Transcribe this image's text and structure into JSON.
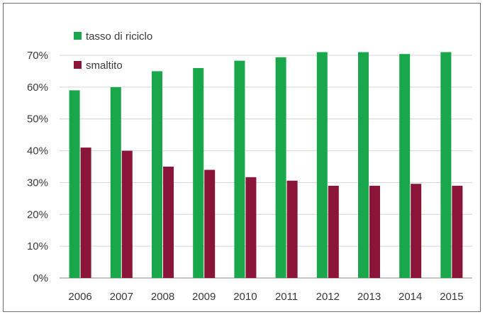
{
  "chart_data": {
    "type": "bar",
    "title": "",
    "xlabel": "",
    "ylabel": "",
    "categories": [
      "2006",
      "2007",
      "2008",
      "2009",
      "2010",
      "2011",
      "2012",
      "2013",
      "2014",
      "2015"
    ],
    "series": [
      {
        "name": "tasso di riciclo",
        "color": "#1aa64a",
        "values": [
          59,
          60,
          65,
          66,
          68.3,
          69.4,
          71,
          71,
          70.4,
          71
        ]
      },
      {
        "name": "smaltito",
        "color": "#8b1538",
        "values": [
          41,
          40,
          35,
          34,
          31.7,
          30.6,
          29,
          29,
          29.6,
          29
        ]
      }
    ],
    "y_ticks": [
      "0%",
      "10%",
      "20%",
      "30%",
      "40%",
      "50%",
      "60%",
      "70%"
    ],
    "ylim": [
      0,
      70
    ],
    "grid": true,
    "legend": "top-left"
  }
}
